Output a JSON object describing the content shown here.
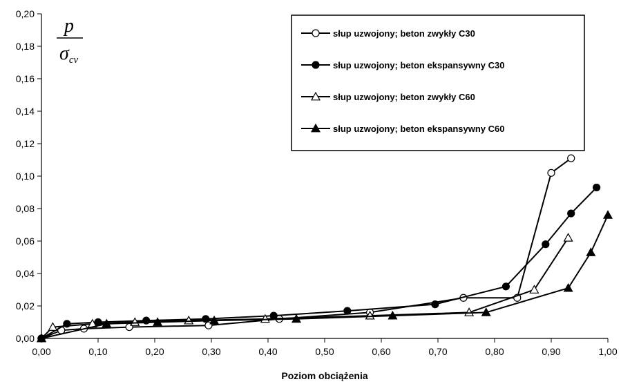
{
  "chart_data": {
    "type": "line",
    "title": "",
    "xlabel": "Poziom obciążenia",
    "ylabel_num": "p",
    "ylabel_den_main": "σ",
    "ylabel_den_sub": "cv",
    "xlim": [
      0,
      1
    ],
    "ylim": [
      0,
      0.2
    ],
    "x_ticks": [
      0,
      0.1,
      0.2,
      0.3,
      0.4,
      0.5,
      0.6,
      0.7,
      0.8,
      0.9,
      1.0
    ],
    "x_tick_labels": [
      "0,00",
      "0,10",
      "0,20",
      "0,30",
      "0,40",
      "0,50",
      "0,60",
      "0,70",
      "0,80",
      "0,90",
      "1,00"
    ],
    "y_ticks": [
      0,
      0.02,
      0.04,
      0.06,
      0.08,
      0.1,
      0.12,
      0.14,
      0.16,
      0.18,
      0.2
    ],
    "y_tick_labels": [
      "0,00",
      "0,02",
      "0,04",
      "0,06",
      "0,08",
      "0,10",
      "0,12",
      "0,14",
      "0,16",
      "0,18",
      "0,20"
    ],
    "grid": false,
    "legend_position": "top-right",
    "series": [
      {
        "name": "słup uzwojony; beton zwykły C30",
        "marker": "circle-open",
        "points": [
          [
            0,
            0
          ],
          [
            0.035,
            0.005
          ],
          [
            0.075,
            0.006
          ],
          [
            0.155,
            0.007
          ],
          [
            0.295,
            0.008
          ],
          [
            0.42,
            0.012
          ],
          [
            0.58,
            0.016
          ],
          [
            0.745,
            0.025
          ],
          [
            0.84,
            0.025
          ],
          [
            0.9,
            0.102
          ],
          [
            0.935,
            0.111
          ]
        ]
      },
      {
        "name": "słup uzwojony; beton ekspansywny C30",
        "marker": "circle-filled",
        "points": [
          [
            0,
            0
          ],
          [
            0.045,
            0.009
          ],
          [
            0.1,
            0.01
          ],
          [
            0.185,
            0.011
          ],
          [
            0.29,
            0.012
          ],
          [
            0.41,
            0.014
          ],
          [
            0.54,
            0.017
          ],
          [
            0.695,
            0.021
          ],
          [
            0.82,
            0.032
          ],
          [
            0.89,
            0.058
          ],
          [
            0.935,
            0.077
          ],
          [
            0.98,
            0.093
          ]
        ]
      },
      {
        "name": "słup uzwojony; beton zwykły C60",
        "marker": "triangle-open",
        "points": [
          [
            0,
            0
          ],
          [
            0.02,
            0.007
          ],
          [
            0.09,
            0.009
          ],
          [
            0.165,
            0.01
          ],
          [
            0.26,
            0.011
          ],
          [
            0.395,
            0.012
          ],
          [
            0.58,
            0.014
          ],
          [
            0.755,
            0.016
          ],
          [
            0.87,
            0.03
          ],
          [
            0.93,
            0.062
          ]
        ]
      },
      {
        "name": "słup uzwojony; beton ekspansywny C60",
        "marker": "triangle-filled",
        "points": [
          [
            0,
            0
          ],
          [
            0.115,
            0.009
          ],
          [
            0.205,
            0.01
          ],
          [
            0.305,
            0.011
          ],
          [
            0.45,
            0.012
          ],
          [
            0.62,
            0.014
          ],
          [
            0.785,
            0.016
          ],
          [
            0.93,
            0.031
          ],
          [
            0.97,
            0.053
          ],
          [
            1.0,
            0.076
          ]
        ]
      }
    ]
  }
}
